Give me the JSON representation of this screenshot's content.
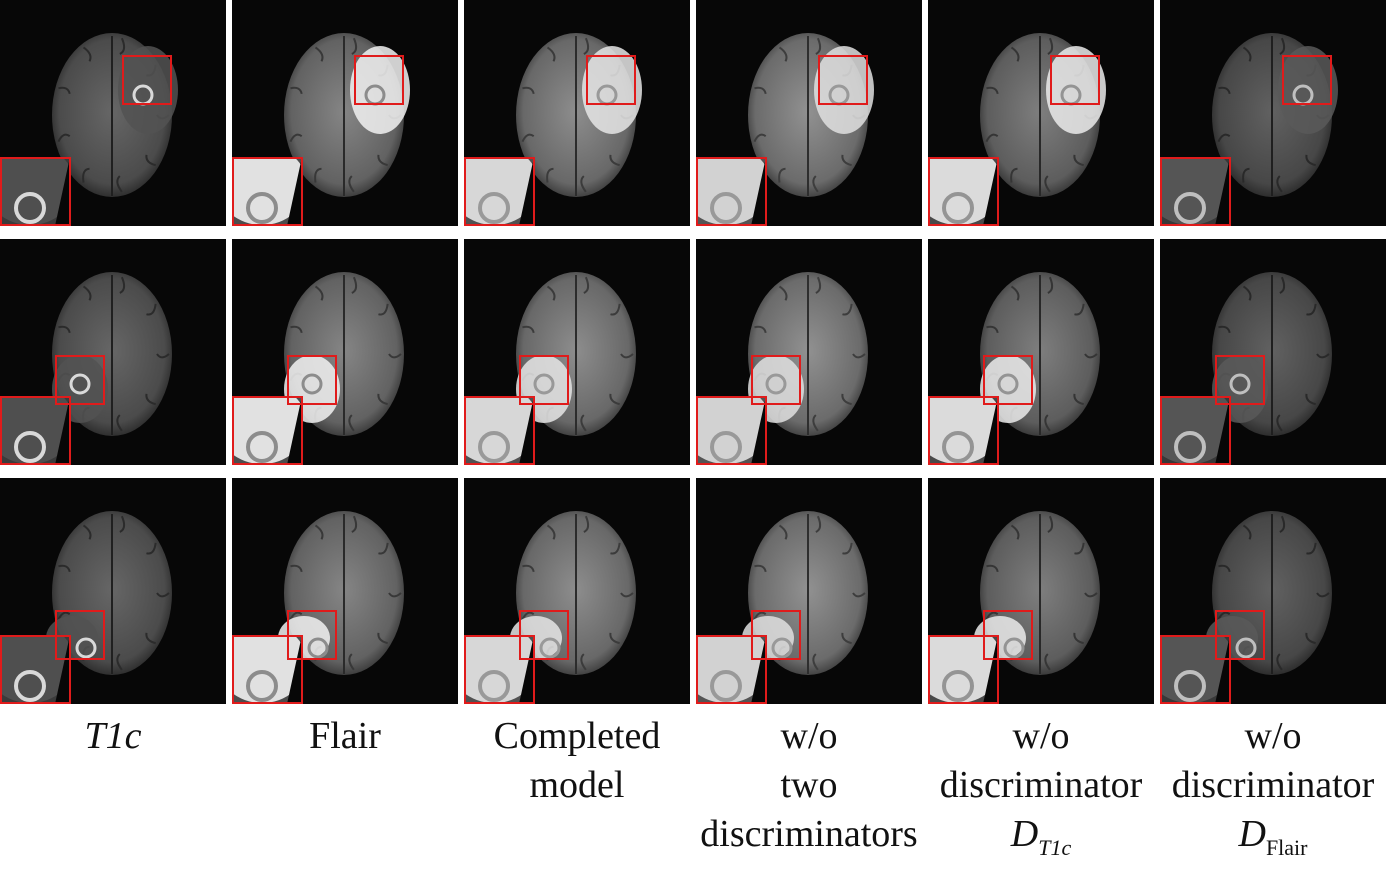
{
  "figure": {
    "columns": [
      {
        "key": "t1c",
        "lines": [],
        "brightness": 0.42,
        "lesion": 0.32,
        "rim": 0.85
      },
      {
        "key": "flair",
        "lines": [
          "Flair"
        ],
        "brightness": 0.55,
        "lesion": 0.95,
        "rim": 0.55
      },
      {
        "key": "completed",
        "lines": [
          "Completed",
          "model"
        ],
        "brightness": 0.58,
        "lesion": 0.9,
        "rim": 0.6
      },
      {
        "key": "wo-two",
        "lines": [
          "w/o",
          "two",
          "discriminators"
        ],
        "brightness": 0.6,
        "lesion": 0.88,
        "rim": 0.6
      },
      {
        "key": "wo-dt1c",
        "lines": [
          "w/o",
          "discriminator"
        ],
        "brightness": 0.52,
        "lesion": 0.92,
        "rim": 0.58
      },
      {
        "key": "wo-dflair",
        "lines": [
          "w/o",
          "discriminator"
        ],
        "brightness": 0.4,
        "lesion": 0.35,
        "rim": 0.75
      }
    ],
    "t1c_label": {
      "main": "T1",
      "tail": "c"
    },
    "d_t1c_label": {
      "main": "D",
      "sub": "T1c"
    },
    "d_flair_label": {
      "main": "D",
      "sub": "Flair"
    },
    "frame_color": "#e01b1b",
    "panel_background": "#070707"
  }
}
